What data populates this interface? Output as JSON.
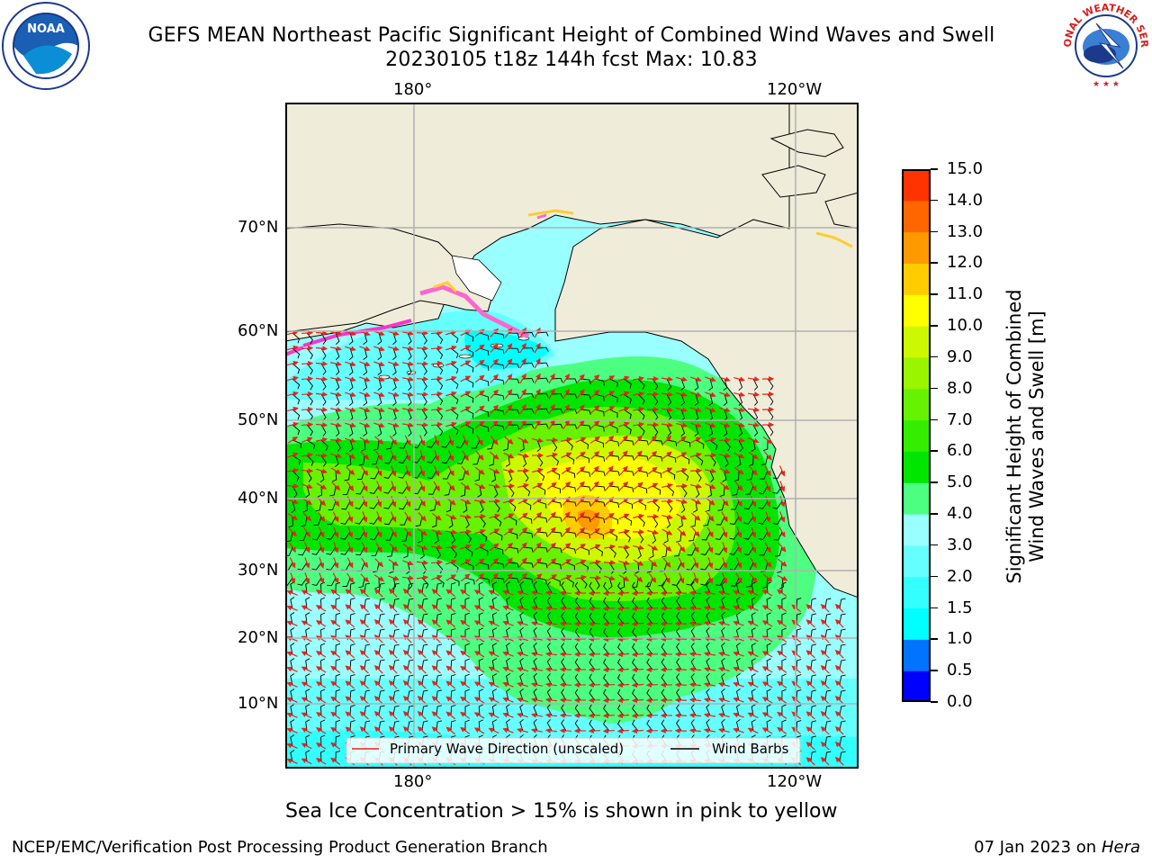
{
  "title": {
    "line1": "GEFS MEAN Northeast Pacific Significant Height of Combined Wind Waves and Swell",
    "line2": "20230105 t18z 144h fcst   Max: 10.83"
  },
  "map": {
    "lon_labels_top": [
      "180°",
      "120°W"
    ],
    "lon_labels_bottom": [
      "180°",
      "120°W"
    ],
    "lat_labels": [
      "70°N",
      "60°N",
      "50°N",
      "40°N",
      "30°N",
      "20°N",
      "10°N"
    ],
    "legend": {
      "wave_direction_label": "Primary Wave Direction (unscaled)",
      "wind_barbs_label": "Wind Barbs",
      "wave_direction_color": "#e8231e",
      "wind_barbs_color": "#000000"
    },
    "land_color": "#efedda",
    "grid_color": "#b0b0b0"
  },
  "colorbar": {
    "title_line1": "Significant Height of Combined",
    "title_line2": "Wind Waves and Swell [m]",
    "ticks": [
      "0.0",
      "0.5",
      "1.0",
      "1.5",
      "2.0",
      "3.0",
      "4.0",
      "5.0",
      "6.0",
      "7.0",
      "8.0",
      "9.0",
      "10.0",
      "11.0",
      "12.0",
      "13.0",
      "14.0",
      "15.0"
    ],
    "colors": [
      "#0000ff",
      "#0073ff",
      "#00ffff",
      "#33ffff",
      "#66ffff",
      "#99ffff",
      "#4dff80",
      "#00e600",
      "#33ee00",
      "#66f200",
      "#99f500",
      "#ccf900",
      "#ffff00",
      "#ffcc00",
      "#ff9900",
      "#ff6600",
      "#ff3300",
      "#ff0000"
    ]
  },
  "caption": "Sea Ice Concentration > 15% is shown in pink to yellow",
  "footer": {
    "left": "NCEP/EMC/Verification Post Processing Product Generation Branch",
    "date": "07 Jan 2023 on ",
    "machine": "Hera"
  },
  "logos": {
    "noaa": "NOAA",
    "nws": "NATIONAL WEATHER SERVICE"
  }
}
